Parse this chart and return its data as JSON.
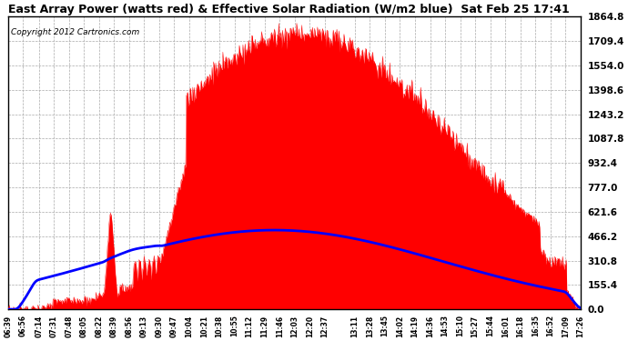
{
  "title": "East Array Power (watts red) & Effective Solar Radiation (W/m2 blue)  Sat Feb 25 17:41",
  "copyright": "Copyright 2012 Cartronics.com",
  "background_color": "#ffffff",
  "plot_bg_color": "#ffffff",
  "y_max": 1864.8,
  "y_min": 0.0,
  "y_ticks": [
    0.0,
    155.4,
    310.8,
    466.2,
    621.6,
    777.0,
    932.4,
    1087.8,
    1243.2,
    1398.6,
    1554.0,
    1709.4,
    1864.8
  ],
  "x_labels": [
    "06:39",
    "06:56",
    "07:14",
    "07:31",
    "07:48",
    "08:05",
    "08:22",
    "08:39",
    "08:56",
    "09:13",
    "09:30",
    "09:47",
    "10:04",
    "10:21",
    "10:38",
    "10:55",
    "11:12",
    "11:29",
    "11:46",
    "12:03",
    "12:20",
    "12:37",
    "13:11",
    "13:28",
    "13:45",
    "14:02",
    "14:19",
    "14:36",
    "14:53",
    "15:10",
    "15:27",
    "15:44",
    "16:01",
    "16:18",
    "16:35",
    "16:52",
    "17:09",
    "17:26"
  ],
  "power_color": "#ff0000",
  "radiation_color": "#0000ff",
  "title_color": "#000000",
  "tick_color": "#000000",
  "grid_color": "#aaaaaa",
  "border_color": "#000000",
  "title_fontsize": 9.0,
  "copyright_fontsize": 6.5,
  "tick_fontsize": 7.5,
  "xtick_fontsize": 5.5
}
